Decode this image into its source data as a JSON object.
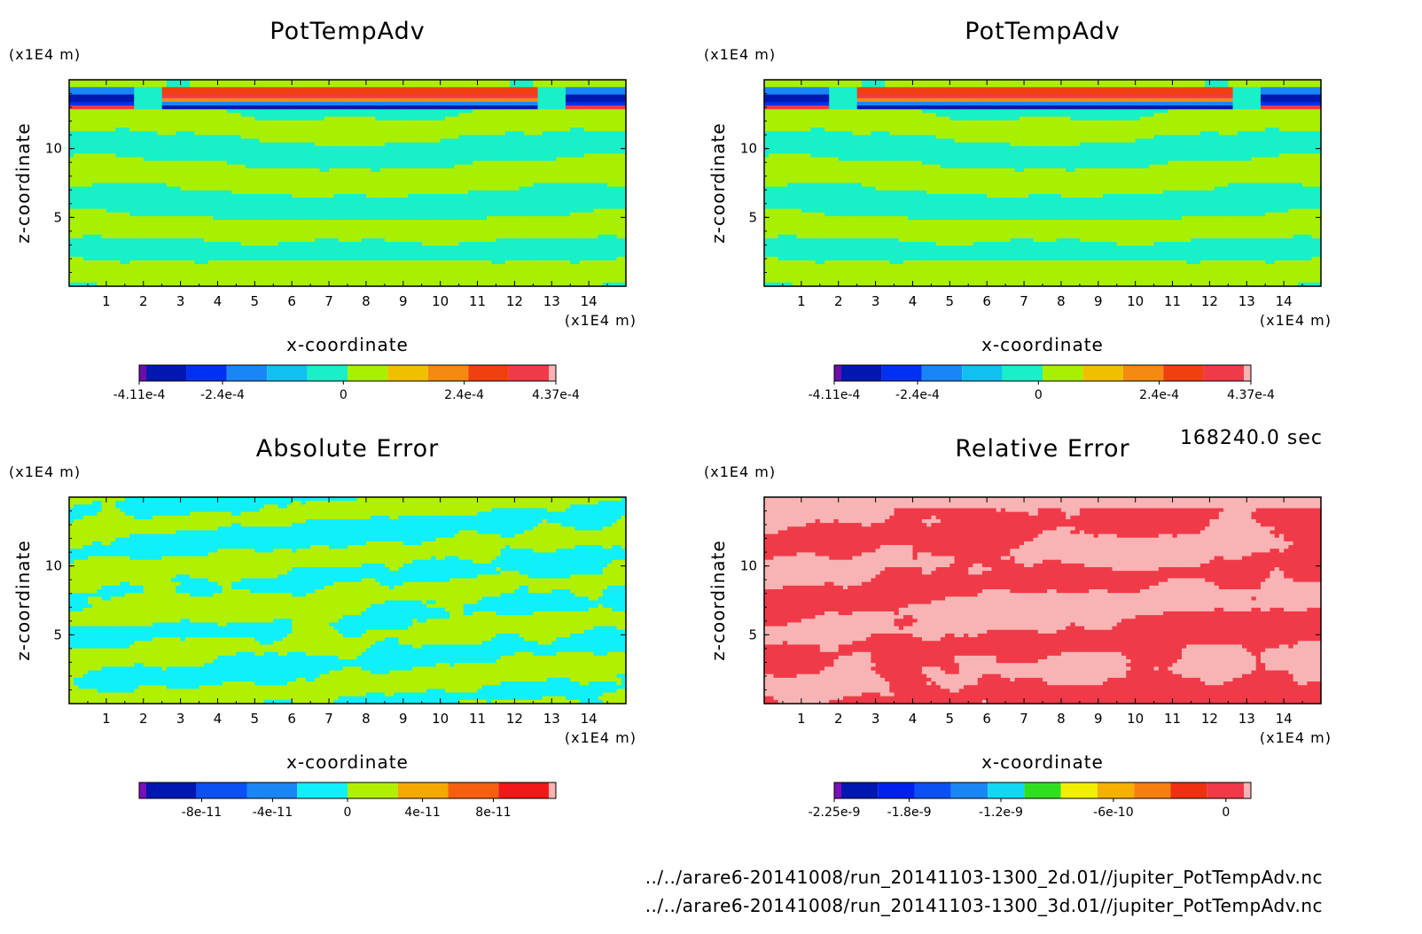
{
  "timestamp": "168240.0 sec",
  "footer_files": [
    "../../arare6-20141008/run_20141103-1300_2d.01//jupiter_PotTempAdv.nc",
    "../../arare6-20141008/run_20141103-1300_3d.01//jupiter_PotTempAdv.nc"
  ],
  "chart_data": [
    {
      "type": "heatmap",
      "title": "PotTempAdv",
      "xlabel": "x-coordinate",
      "ylabel": "z-coordinate",
      "x_unit": "(x1E4 m)",
      "y_unit": "(x1E4 m)",
      "xlim": [
        0,
        15
      ],
      "ylim": [
        0,
        15
      ],
      "xticks": [
        "1",
        "2",
        "3",
        "4",
        "5",
        "6",
        "7",
        "8",
        "9",
        "10",
        "11",
        "12",
        "13",
        "14"
      ],
      "yticks": [
        "5",
        "10"
      ],
      "pattern": "field",
      "colorbar": {
        "colors": [
          "#6b0fa8",
          "#0018b0",
          "#0030f0",
          "#1a86f5",
          "#12c0f0",
          "#18f0c8",
          "#a8f000",
          "#f0c000",
          "#f58a10",
          "#f04010",
          "#f03a48",
          "#f8b4b4"
        ],
        "labels": [
          "-4.11e-4",
          "-2.4e-4",
          "0",
          "2.4e-4",
          "4.37e-4"
        ]
      }
    },
    {
      "type": "heatmap",
      "title": "PotTempAdv",
      "xlabel": "x-coordinate",
      "ylabel": "z-coordinate",
      "x_unit": "(x1E4 m)",
      "y_unit": "(x1E4 m)",
      "xlim": [
        0,
        15
      ],
      "ylim": [
        0,
        15
      ],
      "xticks": [
        "1",
        "2",
        "3",
        "4",
        "5",
        "6",
        "7",
        "8",
        "9",
        "10",
        "11",
        "12",
        "13",
        "14"
      ],
      "yticks": [
        "5",
        "10"
      ],
      "pattern": "field",
      "colorbar": {
        "colors": [
          "#6b0fa8",
          "#0018b0",
          "#0030f0",
          "#1a86f5",
          "#12c0f0",
          "#18f0c8",
          "#a8f000",
          "#f0c000",
          "#f58a10",
          "#f04010",
          "#f03a48",
          "#f8b4b4"
        ],
        "labels": [
          "-4.11e-4",
          "-2.4e-4",
          "0",
          "2.4e-4",
          "4.37e-4"
        ]
      }
    },
    {
      "type": "heatmap",
      "title": "Absolute Error",
      "xlabel": "x-coordinate",
      "ylabel": "z-coordinate",
      "x_unit": "(x1E4 m)",
      "y_unit": "(x1E4 m)",
      "xlim": [
        0,
        15
      ],
      "ylim": [
        0,
        15
      ],
      "xticks": [
        "1",
        "2",
        "3",
        "4",
        "5",
        "6",
        "7",
        "8",
        "9",
        "10",
        "11",
        "12",
        "13",
        "14"
      ],
      "yticks": [
        "5",
        "10"
      ],
      "pattern": "abs_error",
      "colorbar": {
        "colors": [
          "#7a10b8",
          "#0018b0",
          "#0a50f5",
          "#1a86f5",
          "#10f0f8",
          "#b0f000",
          "#f5a800",
          "#f56010",
          "#f01818",
          "#f8b4b4"
        ],
        "labels": [
          "-8e-11",
          "-4e-11",
          "0",
          "4e-11",
          "8e-11"
        ]
      }
    },
    {
      "type": "heatmap",
      "title": "Relative Error",
      "xlabel": "x-coordinate",
      "ylabel": "z-coordinate",
      "x_unit": "(x1E4 m)",
      "y_unit": "(x1E4 m)",
      "xlim": [
        0,
        15
      ],
      "ylim": [
        0,
        15
      ],
      "xticks": [
        "1",
        "2",
        "3",
        "4",
        "5",
        "6",
        "7",
        "8",
        "9",
        "10",
        "11",
        "12",
        "13",
        "14"
      ],
      "yticks": [
        "5",
        "10"
      ],
      "pattern": "rel_error",
      "colorbar": {
        "colors": [
          "#7a10b8",
          "#0018b0",
          "#0020f0",
          "#0a50f5",
          "#1a86f5",
          "#10d8f0",
          "#30e020",
          "#f0f000",
          "#f5b000",
          "#f58010",
          "#f03010",
          "#f03a48",
          "#f8b4b4"
        ],
        "labels": [
          "-2.25e-9",
          "-1.8e-9",
          "-1.2e-9",
          "-6e-10",
          "0"
        ]
      }
    }
  ]
}
